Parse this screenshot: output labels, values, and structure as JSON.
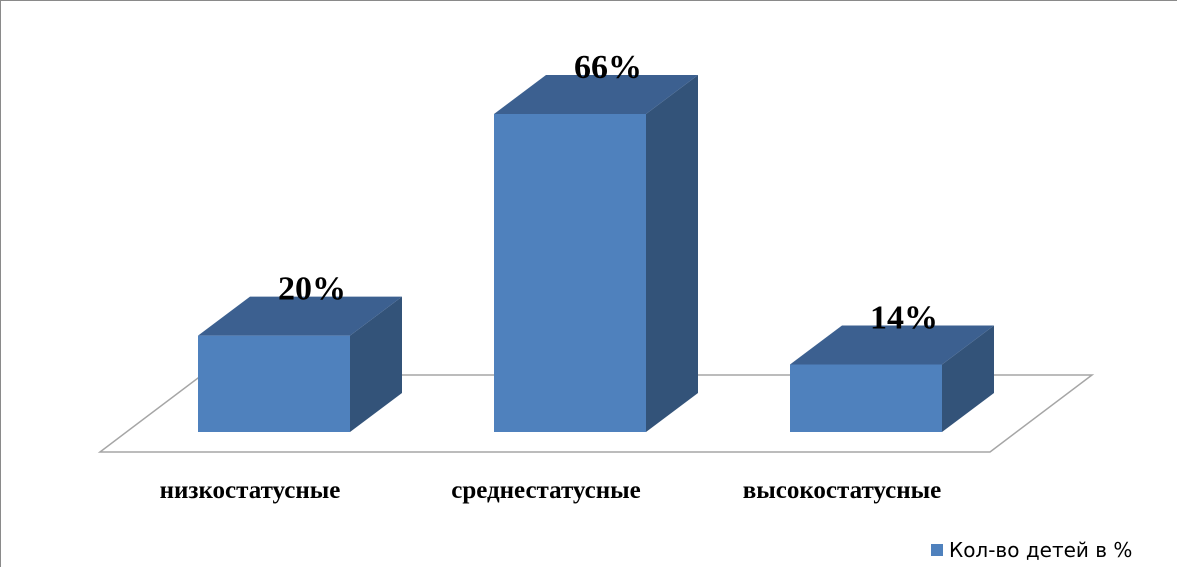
{
  "chart_data": {
    "type": "bar",
    "categories": [
      "низкостатусные",
      "среднестатусные",
      "высокостатусные"
    ],
    "series": [
      {
        "name": "Кол-во детей в %",
        "values": [
          20,
          66,
          14
        ],
        "labels": [
          "20%",
          "66%",
          "14%"
        ]
      }
    ],
    "title": "",
    "xlabel": "",
    "ylabel": "",
    "ylim": [
      0,
      66
    ],
    "style": "3d-column",
    "grid": false,
    "legend": "bottom-right",
    "colors": {
      "front": "#4F81BD",
      "top": "#3C6090",
      "side": "#335379",
      "floor_stroke": "#A6A6A6"
    }
  }
}
